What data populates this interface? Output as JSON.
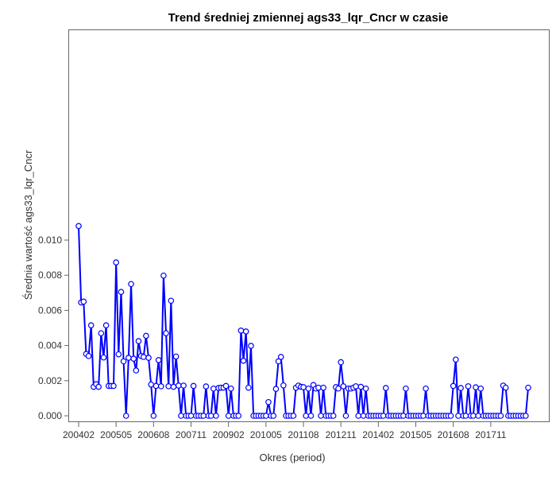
{
  "chart_data": {
    "type": "line",
    "title": "Trend średniej zmiennej ags33_lqr_Cncr w czasie",
    "xlabel": "Okres (period)",
    "ylabel": "Średnia wartość ags33_lqr_Cncr",
    "x_ticks": [
      "200402",
      "200505",
      "200608",
      "200711",
      "200902",
      "201005",
      "201108",
      "201211",
      "201402",
      "201505",
      "201608",
      "201711"
    ],
    "y_ticks": [
      "0.000",
      "0.002",
      "0.004",
      "0.006",
      "0.008",
      "0.010"
    ],
    "ylim": [
      -0.0001,
      0.0109
    ],
    "grid": false,
    "legend": "none",
    "line_color": "#0000ff",
    "marker": "open-circle",
    "series": [
      {
        "values": [
          0.0108,
          0.00645,
          0.0065,
          0.00352,
          0.0034,
          0.00515,
          0.00165,
          0.0018,
          0.00165,
          0.0047,
          0.00332,
          0.00515,
          0.0017,
          0.0017,
          0.0017,
          0.00873,
          0.0035,
          0.00705,
          0.0031,
          0.0,
          0.0033,
          0.0075,
          0.00325,
          0.00258,
          0.00425,
          0.0034,
          0.00335,
          0.00455,
          0.0033,
          0.00178,
          0.0,
          0.0017,
          0.00317,
          0.00168,
          0.00798,
          0.0047,
          0.00168,
          0.00655,
          0.00165,
          0.00337,
          0.00172,
          0.0,
          0.00172,
          0.0,
          0.0,
          0.0,
          0.0017,
          0.0,
          0.0,
          0.0,
          0.0,
          0.00167,
          0.0,
          0.0,
          0.00155,
          0.0,
          0.00158,
          0.0016,
          0.0016,
          0.0017,
          0.0,
          0.00155,
          0.0,
          0.0,
          0.0,
          0.00485,
          0.00313,
          0.0048,
          0.0016,
          0.00398,
          0.0,
          0.0,
          0.0,
          0.0,
          0.0,
          0.0,
          0.00078,
          0.0,
          0.0,
          0.00153,
          0.0031,
          0.00335,
          0.00173,
          0.0,
          0.0,
          0.0,
          0.0,
          0.0016,
          0.00172,
          0.00165,
          0.00163,
          0.0,
          0.00155,
          0.0,
          0.00175,
          0.00155,
          0.0016,
          0.0,
          0.0016,
          0.0,
          0.0,
          0.0,
          0.0,
          0.00163,
          0.00155,
          0.00305,
          0.00168,
          0.0,
          0.00155,
          0.00155,
          0.0016,
          0.00168,
          0.0,
          0.00165,
          0.0,
          0.00155,
          0.0,
          0.0,
          0.0,
          0.0,
          0.0,
          0.0,
          0.0,
          0.00158,
          0.0,
          0.0,
          0.0,
          0.0,
          0.0,
          0.0,
          0.0,
          0.00155,
          0.0,
          0.0,
          0.0,
          0.0,
          0.0,
          0.0,
          0.0,
          0.00155,
          0.0,
          0.0,
          0.0,
          0.0,
          0.0,
          0.0,
          0.0,
          0.0,
          0.0,
          0.0,
          0.0017,
          0.0032,
          0.0,
          0.00158,
          0.0,
          0.0,
          0.00168,
          0.0,
          0.0,
          0.00162,
          0.0,
          0.00155,
          0.0,
          0.0,
          0.0,
          0.0,
          0.0,
          0.0,
          0.0,
          0.0,
          0.00172,
          0.0016,
          0.0,
          0.0,
          0.0,
          0.0,
          0.0,
          0.0,
          0.0,
          0.0,
          0.0016
        ]
      }
    ]
  }
}
